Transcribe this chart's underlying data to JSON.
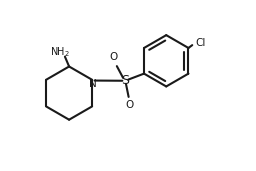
{
  "line_color": "#1a1a1a",
  "background_color": "#ffffff",
  "bond_width": 1.5,
  "figsize": [
    2.56,
    1.71
  ],
  "dpi": 100,
  "xlim": [
    0.0,
    1.0
  ],
  "ylim": [
    0.05,
    0.95
  ]
}
